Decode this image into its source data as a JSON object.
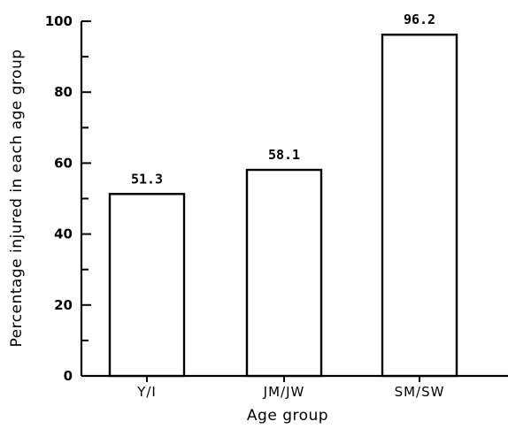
{
  "chart_data": {
    "type": "bar",
    "categories": [
      "Y/I",
      "JM/JW",
      "SM/SW"
    ],
    "values": [
      51.3,
      58.1,
      96.2
    ],
    "data_labels": [
      "51.3",
      "58.1",
      "96.2"
    ],
    "title": "",
    "xlabel": "Age group",
    "ylabel": "Percentage injured in each age group",
    "ylim": [
      0,
      100
    ],
    "yticks": [
      0,
      20,
      40,
      60,
      80,
      100
    ],
    "yticks_minor": [
      10,
      30,
      50,
      70,
      90
    ],
    "grid": false,
    "bar_fill": "#ffffff",
    "bar_edge": "#000000"
  }
}
